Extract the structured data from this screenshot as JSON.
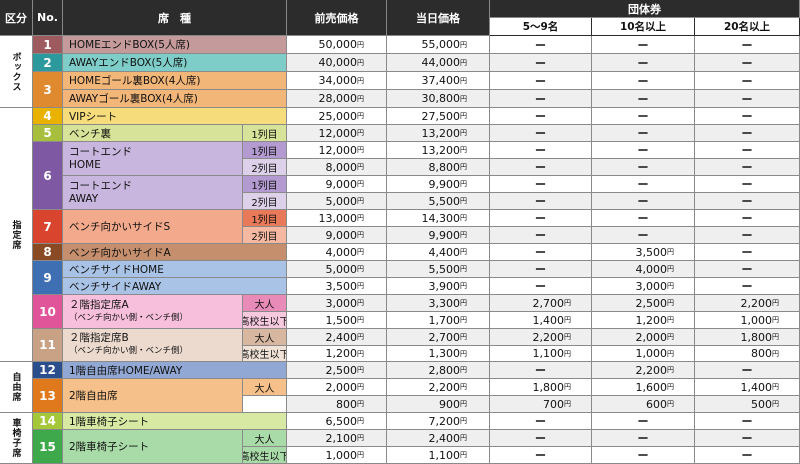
{
  "headers": {
    "category": "区分",
    "no": "No.",
    "seat": "席　種",
    "advance": "前売価格",
    "sameday": "当日価格",
    "group": "団体券",
    "group_sub": [
      "5〜9名",
      "10名以上",
      "20名以上"
    ]
  },
  "categories": [
    {
      "label": "ボックス",
      "rows": [
        0,
        3
      ]
    },
    {
      "label": "指定席",
      "rows": [
        4,
        20
      ]
    },
    {
      "label": "自由席",
      "rows": [
        21,
        23
      ]
    },
    {
      "label": "車椅子席",
      "rows": [
        24,
        26
      ]
    }
  ],
  "yen": "円",
  "dash": "ー",
  "groups": [
    {
      "no": "1",
      "color": "#9d5b5f",
      "light": "#c49a9a",
      "rows": [
        0,
        0
      ],
      "name_lines": [
        "HOMEエンドBOX(5人席)"
      ]
    },
    {
      "no": "2",
      "color": "#2c9a9d",
      "light": "#7fcdc9",
      "rows": [
        1,
        1
      ],
      "name_lines": [
        "AWAYエンドBOX(5人席)"
      ]
    },
    {
      "no": "3",
      "color": "#e08a2f",
      "light": "#f3b679",
      "rows": [
        2,
        3
      ],
      "name_lines": []
    },
    {
      "no": "4",
      "color": "#e9b200",
      "light": "#f6dc7a",
      "rows": [
        4,
        4
      ],
      "name_lines": [
        "VIPシート"
      ]
    },
    {
      "no": "5",
      "color": "#a8bf3d",
      "light": "#d7e398",
      "rows": [
        5,
        5
      ],
      "name_lines": [
        "ベンチ裏"
      ]
    },
    {
      "no": "6",
      "color": "#7e58a2",
      "light": "#c8b6de",
      "rows": [
        6,
        9
      ],
      "name_lines": []
    },
    {
      "no": "7",
      "color": "#d9442f",
      "light": "#f3a98c",
      "rows": [
        10,
        11
      ],
      "name_lines": [
        "ベンチ向かいサイドS"
      ]
    },
    {
      "no": "8",
      "color": "#8a4b24",
      "light": "#c58e6c",
      "rows": [
        12,
        12
      ],
      "name_lines": [
        "ベンチ向かいサイドA"
      ]
    },
    {
      "no": "9",
      "color": "#3f6fb3",
      "light": "#a9c3e6",
      "rows": [
        13,
        14
      ],
      "name_lines": []
    },
    {
      "no": "10",
      "color": "#e0559a",
      "light": "#f7bfdc",
      "rows": [
        15,
        16
      ],
      "name_lines": [
        "２階指定席A",
        "（ベンチ向かい側・ベンチ側）"
      ]
    },
    {
      "no": "11",
      "color": "#c9a184",
      "light": "#ecdace",
      "rows": [
        17,
        18
      ],
      "name_lines": [
        "２階指定席B",
        "（ベンチ向かい側・ベンチ側）"
      ]
    },
    {
      "no": "12",
      "color": "#2b4e8c",
      "light": "#92a8d4",
      "rows": [
        21,
        21
      ],
      "name_lines": [
        "1階自由席HOME/AWAY"
      ]
    },
    {
      "no": "13",
      "color": "#e0781c",
      "light": "#f5c08a",
      "rows": [
        22,
        23
      ],
      "name_lines": [
        "2階自由席"
      ]
    },
    {
      "no": "14",
      "color": "#a5c83a",
      "light": "#d8e9a4",
      "rows": [
        24,
        24
      ],
      "name_lines": [
        "1階車椅子シート"
      ]
    },
    {
      "no": "15",
      "color": "#3da94a",
      "light": "#a9dba8",
      "rows": [
        25,
        26
      ],
      "name_lines": [
        "2階車椅子シート"
      ]
    }
  ],
  "subnames": [
    {
      "group": "3",
      "row": 2,
      "text": "HOMEゴール裏BOX(4人席)"
    },
    {
      "group": "3",
      "row": 3,
      "text": "AWAYゴール裏BOX(4人席)"
    },
    {
      "group": "6",
      "rows": [
        6,
        7
      ],
      "lines": [
        "コートエンド",
        "HOME"
      ]
    },
    {
      "group": "6",
      "rows": [
        8,
        9
      ],
      "lines": [
        "コートエンド",
        "AWAY"
      ]
    },
    {
      "group": "9",
      "row": 13,
      "text": "ベンチサイドHOME"
    },
    {
      "group": "9",
      "row": 14,
      "text": "ベンチサイドAWAY"
    }
  ],
  "rows": [
    {
      "tag": "",
      "advance": "50,000",
      "sameday": "55,000",
      "g1": "",
      "g2": "",
      "g3": ""
    },
    {
      "tag": "",
      "advance": "40,000",
      "sameday": "44,000",
      "g1": "",
      "g2": "",
      "g3": ""
    },
    {
      "tag": "",
      "advance": "34,000",
      "sameday": "37,400",
      "g1": "",
      "g2": "",
      "g3": ""
    },
    {
      "tag": "",
      "advance": "28,000",
      "sameday": "30,800",
      "g1": "",
      "g2": "",
      "g3": ""
    },
    {
      "tag": "",
      "advance": "25,000",
      "sameday": "27,500",
      "g1": "",
      "g2": "",
      "g3": ""
    },
    {
      "tag": "1列目",
      "advance": "12,000",
      "sameday": "13,200",
      "g1": "",
      "g2": "",
      "g3": ""
    },
    {
      "tag": "1列目",
      "advance": "12,000",
      "sameday": "13,200",
      "g1": "",
      "g2": "",
      "g3": ""
    },
    {
      "tag": "2列目",
      "advance": "8,000",
      "sameday": "8,800",
      "g1": "",
      "g2": "",
      "g3": ""
    },
    {
      "tag": "1列目",
      "advance": "9,000",
      "sameday": "9,900",
      "g1": "",
      "g2": "",
      "g3": ""
    },
    {
      "tag": "2列目",
      "advance": "5,000",
      "sameday": "5,500",
      "g1": "",
      "g2": "",
      "g3": ""
    },
    {
      "tag": "1列目",
      "advance": "13,000",
      "sameday": "14,300",
      "g1": "",
      "g2": "",
      "g3": ""
    },
    {
      "tag": "2列目",
      "advance": "9,000",
      "sameday": "9,900",
      "g1": "",
      "g2": "",
      "g3": ""
    },
    {
      "tag": "",
      "advance": "4,000",
      "sameday": "4,400",
      "g1": "",
      "g2": "3,500",
      "g3": ""
    },
    {
      "tag": "",
      "advance": "5,000",
      "sameday": "5,500",
      "g1": "",
      "g2": "4,000",
      "g3": ""
    },
    {
      "tag": "",
      "advance": "3,500",
      "sameday": "3,900",
      "g1": "",
      "g2": "3,000",
      "g3": ""
    },
    {
      "tag": "大人",
      "advance": "3,000",
      "sameday": "3,300",
      "g1": "2,700",
      "g2": "2,500",
      "g3": "2,200"
    },
    {
      "tag": "高校生以下",
      "advance": "1,500",
      "sameday": "1,700",
      "g1": "1,400",
      "g2": "1,200",
      "g3": "1,000"
    },
    {
      "tag": "大人",
      "advance": "2,400",
      "sameday": "2,700",
      "g1": "2,200",
      "g2": "2,000",
      "g3": "1,800"
    },
    {
      "tag": "高校生以下",
      "advance": "1,200",
      "sameday": "1,300",
      "g1": "1,100",
      "g2": "1,000",
      "g3": "800"
    },
    {
      "skip": true
    },
    {
      "skip": true
    },
    {
      "tag": "",
      "advance": "2,500",
      "sameday": "2,800",
      "g1": "",
      "g2": "2,200",
      "g3": ""
    },
    {
      "tag": "大人",
      "advance": "2,000",
      "sameday": "2,200",
      "g1": "1,800",
      "g2": "1,600",
      "g3": "1,400"
    },
    {
      "tag": "",
      "advance": "800",
      "sameday": "900",
      "g1": "700",
      "g2": "600",
      "g3": "500"
    },
    {
      "tag": "",
      "advance": "6,500",
      "sameday": "7,200",
      "g1": "",
      "g2": "",
      "g3": ""
    },
    {
      "tag": "大人",
      "advance": "2,100",
      "sameday": "2,400",
      "g1": "",
      "g2": "",
      "g3": ""
    },
    {
      "tag": "高校生以下",
      "advance": "1,000",
      "sameday": "1,100",
      "g1": "",
      "g2": "",
      "g3": ""
    }
  ]
}
